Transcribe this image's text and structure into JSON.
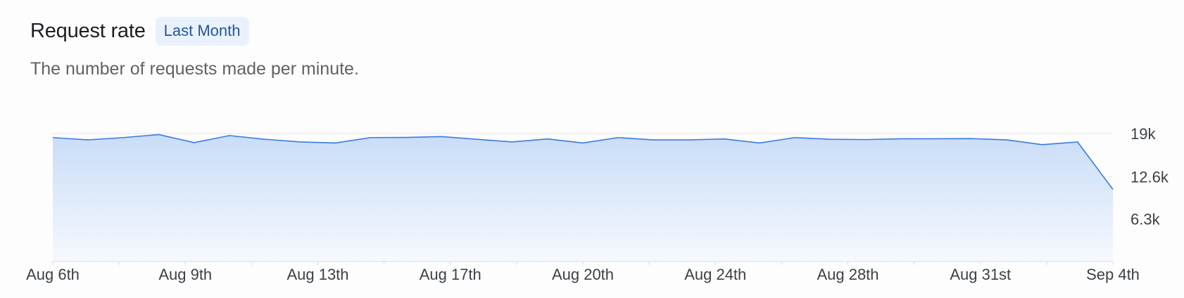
{
  "header": {
    "title": "Request rate",
    "badge": "Last Month",
    "subtitle": "The number of requests made per minute."
  },
  "colors": {
    "line": "#3b7be0",
    "fill_top": "#c9dcf7",
    "fill_bottom": "#f6f9fe",
    "grid": "#e3e5e8",
    "axis": "#d9dbde"
  },
  "chart_data": {
    "type": "area",
    "title": "",
    "xlabel": "",
    "ylabel": "",
    "ylim": [
      0,
      19000
    ],
    "yticks": [
      {
        "value": 19000,
        "label": "19k"
      },
      {
        "value": 12600,
        "label": "12.6k"
      },
      {
        "value": 6300,
        "label": "6.3k"
      }
    ],
    "xticks": [
      "Aug 6th",
      "Aug 9th",
      "Aug 13th",
      "Aug 17th",
      "Aug 20th",
      "Aug 24th",
      "Aug 28th",
      "Aug 31st",
      "Sep 4th"
    ],
    "x_range_days": [
      0,
      30
    ],
    "grid": "horizontal",
    "series": [
      {
        "values": [
          [
            0,
            18400
          ],
          [
            1,
            18050
          ],
          [
            2,
            18400
          ],
          [
            3,
            18850
          ],
          [
            4,
            17650
          ],
          [
            5,
            18700
          ],
          [
            6,
            18150
          ],
          [
            7,
            17750
          ],
          [
            8,
            17600
          ],
          [
            9,
            18400
          ],
          [
            10,
            18420
          ],
          [
            11,
            18550
          ],
          [
            12,
            18150
          ],
          [
            13,
            17750
          ],
          [
            14,
            18200
          ],
          [
            15,
            17600
          ],
          [
            16,
            18400
          ],
          [
            17,
            18050
          ],
          [
            18,
            18050
          ],
          [
            19,
            18200
          ],
          [
            20,
            17600
          ],
          [
            21,
            18400
          ],
          [
            22,
            18150
          ],
          [
            23,
            18100
          ],
          [
            24,
            18220
          ],
          [
            25,
            18220
          ],
          [
            26,
            18250
          ],
          [
            27,
            18050
          ],
          [
            28,
            17350
          ],
          [
            29,
            17750
          ],
          [
            30,
            10700
          ]
        ]
      }
    ]
  }
}
